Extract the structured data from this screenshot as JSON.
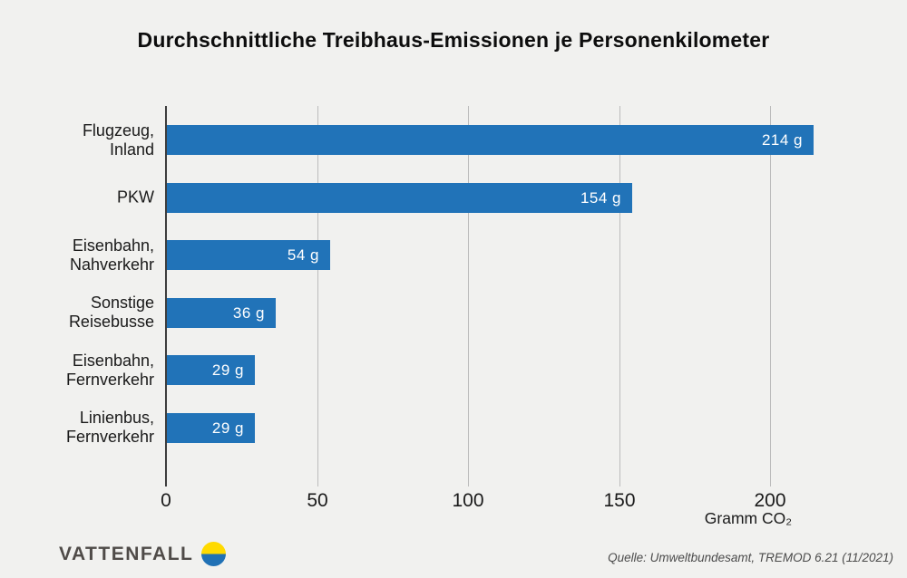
{
  "chart_data": {
    "type": "bar",
    "orientation": "horizontal",
    "title": "Durchschnittliche Treibhaus-Emissionen je Personenkilometer",
    "categories": [
      "Flugzeug,\nInland",
      "PKW",
      "Eisenbahn,\nNahverkehr",
      "Sonstige\nReisebusse",
      "Eisenbahn,\nFernverkehr",
      "Linienbus,\nFernverkehr"
    ],
    "values": [
      214,
      154,
      54,
      36,
      29,
      29
    ],
    "value_labels": [
      "214 g",
      "154 g",
      "54 g",
      "36 g",
      "29 g",
      "29 g"
    ],
    "xticks": [
      0,
      50,
      100,
      150,
      200
    ],
    "xtick_labels": [
      "0",
      "50",
      "100",
      "150",
      "200"
    ],
    "xlim": [
      0,
      200
    ],
    "xlabel": "Gramm CO₂",
    "grid": true,
    "legend": false,
    "bar_color": "#2173b8"
  },
  "footer": {
    "logo_text": "VATTENFALL",
    "source": "Quelle: Umweltbundesamt, TREMOD 6.21 (11/2021)"
  },
  "colors": {
    "background": "#f1f1ef",
    "bar": "#2173b8",
    "axis": "#3d3d3d",
    "gridline": "#bcbcbc",
    "text": "#1a1a1a",
    "value_text": "#ffffff",
    "logo_text": "#4f4b48",
    "logo_yellow": "#ffda00",
    "logo_blue": "#2071b5"
  }
}
